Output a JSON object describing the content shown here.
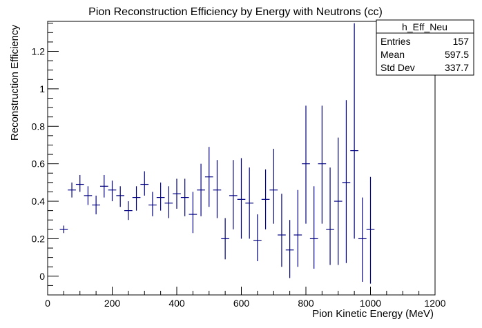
{
  "chart_data": {
    "type": "scatter",
    "title": "Pion Reconstruction Efficiency by Energy with Neutrons (cc)",
    "xlabel": "Pion Kinetic Energy (MeV)",
    "ylabel": "Reconstruction Efficiency",
    "xlim": [
      0,
      1200
    ],
    "ylim": [
      -0.1,
      1.36
    ],
    "x_ticks": [
      "0",
      "200",
      "400",
      "600",
      "800",
      "1000",
      "1200"
    ],
    "y_ticks": [
      "0",
      "0.2",
      "0.4",
      "0.6",
      "0.8",
      "1",
      "1.2"
    ],
    "grid": false,
    "bin_width": 25,
    "color": "#000080",
    "points": [
      {
        "x": 50,
        "y": 0.25,
        "lo": 0.23,
        "hi": 0.27
      },
      {
        "x": 75,
        "y": 0.46,
        "lo": 0.42,
        "hi": 0.5
      },
      {
        "x": 100,
        "y": 0.49,
        "lo": 0.45,
        "hi": 0.54
      },
      {
        "x": 125,
        "y": 0.43,
        "lo": 0.38,
        "hi": 0.48
      },
      {
        "x": 150,
        "y": 0.38,
        "lo": 0.33,
        "hi": 0.43
      },
      {
        "x": 175,
        "y": 0.48,
        "lo": 0.42,
        "hi": 0.54
      },
      {
        "x": 200,
        "y": 0.46,
        "lo": 0.4,
        "hi": 0.51
      },
      {
        "x": 225,
        "y": 0.43,
        "lo": 0.37,
        "hi": 0.48
      },
      {
        "x": 250,
        "y": 0.35,
        "lo": 0.3,
        "hi": 0.4
      },
      {
        "x": 275,
        "y": 0.42,
        "lo": 0.35,
        "hi": 0.48
      },
      {
        "x": 300,
        "y": 0.49,
        "lo": 0.43,
        "hi": 0.56
      },
      {
        "x": 325,
        "y": 0.38,
        "lo": 0.32,
        "hi": 0.45
      },
      {
        "x": 350,
        "y": 0.42,
        "lo": 0.35,
        "hi": 0.5
      },
      {
        "x": 375,
        "y": 0.39,
        "lo": 0.31,
        "hi": 0.48
      },
      {
        "x": 400,
        "y": 0.44,
        "lo": 0.36,
        "hi": 0.52
      },
      {
        "x": 425,
        "y": 0.42,
        "lo": 0.32,
        "hi": 0.52
      },
      {
        "x": 450,
        "y": 0.33,
        "lo": 0.23,
        "hi": 0.45
      },
      {
        "x": 475,
        "y": 0.46,
        "lo": 0.32,
        "hi": 0.6
      },
      {
        "x": 500,
        "y": 0.53,
        "lo": 0.37,
        "hi": 0.69
      },
      {
        "x": 525,
        "y": 0.46,
        "lo": 0.31,
        "hi": 0.62
      },
      {
        "x": 550,
        "y": 0.2,
        "lo": 0.09,
        "hi": 0.31
      },
      {
        "x": 575,
        "y": 0.43,
        "lo": 0.25,
        "hi": 0.62
      },
      {
        "x": 600,
        "y": 0.41,
        "lo": 0.2,
        "hi": 0.63
      },
      {
        "x": 625,
        "y": 0.39,
        "lo": 0.2,
        "hi": 0.58
      },
      {
        "x": 650,
        "y": 0.19,
        "lo": 0.08,
        "hi": 0.33
      },
      {
        "x": 675,
        "y": 0.41,
        "lo": 0.25,
        "hi": 0.57
      },
      {
        "x": 700,
        "y": 0.46,
        "lo": 0.28,
        "hi": 0.68
      },
      {
        "x": 725,
        "y": 0.22,
        "lo": 0.05,
        "hi": 0.44
      },
      {
        "x": 750,
        "y": 0.14,
        "lo": -0.01,
        "hi": 0.3
      },
      {
        "x": 775,
        "y": 0.22,
        "lo": 0.05,
        "hi": 0.46
      },
      {
        "x": 800,
        "y": 0.6,
        "lo": 0.28,
        "hi": 0.91
      },
      {
        "x": 825,
        "y": 0.2,
        "lo": 0.04,
        "hi": 0.48
      },
      {
        "x": 850,
        "y": 0.6,
        "lo": 0.28,
        "hi": 0.91
      },
      {
        "x": 875,
        "y": 0.25,
        "lo": 0.06,
        "hi": 0.58
      },
      {
        "x": 900,
        "y": 0.4,
        "lo": 0.06,
        "hi": 0.74
      },
      {
        "x": 925,
        "y": 0.5,
        "lo": 0.07,
        "hi": 0.94
      },
      {
        "x": 950,
        "y": 0.67,
        "lo": 0.2,
        "hi": 1.35
      },
      {
        "x": 975,
        "y": 0.2,
        "lo": -0.03,
        "hi": 0.42
      },
      {
        "x": 1000,
        "y": 0.25,
        "lo": -0.04,
        "hi": 0.53
      }
    ]
  },
  "stats": {
    "name": "h_Eff_Neu",
    "rows": [
      {
        "label": "Entries",
        "value": "157"
      },
      {
        "label": "Mean",
        "value": "597.5"
      },
      {
        "label": "Std Dev",
        "value": "337.7"
      }
    ]
  }
}
